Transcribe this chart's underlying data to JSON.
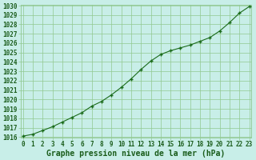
{
  "x": [
    0,
    1,
    2,
    3,
    4,
    5,
    6,
    7,
    8,
    9,
    10,
    11,
    12,
    13,
    14,
    15,
    16,
    17,
    18,
    19,
    20,
    21,
    22,
    23
  ],
  "y": [
    1016.1,
    1016.3,
    1016.7,
    1017.1,
    1017.6,
    1018.1,
    1018.6,
    1019.3,
    1019.8,
    1020.5,
    1021.3,
    1022.2,
    1023.2,
    1024.1,
    1024.8,
    1025.2,
    1025.5,
    1025.8,
    1026.2,
    1026.6,
    1027.3,
    1028.2,
    1029.2,
    1029.9
  ],
  "ylim_min": 1016,
  "ylim_max": 1030,
  "yticks": [
    1016,
    1017,
    1018,
    1019,
    1020,
    1021,
    1022,
    1023,
    1024,
    1025,
    1026,
    1027,
    1028,
    1029,
    1030
  ],
  "xlim_min": 0,
  "xlim_max": 23,
  "xticks": [
    0,
    1,
    2,
    3,
    4,
    5,
    6,
    7,
    8,
    9,
    10,
    11,
    12,
    13,
    14,
    15,
    16,
    17,
    18,
    19,
    20,
    21,
    22,
    23
  ],
  "line_color": "#1a6b1a",
  "marker": "+",
  "marker_color": "#1a6b1a",
  "bg_color": "#c8eee8",
  "grid_color": "#90c890",
  "xlabel": "Graphe pression niveau de la mer (hPa)",
  "xlabel_color": "#1a5c1a",
  "tick_color": "#1a5c1a",
  "tick_fontsize": 5.5,
  "xlabel_fontsize": 7.0,
  "linewidth": 0.8,
  "markersize": 3.5,
  "markeredgewidth": 1.0
}
